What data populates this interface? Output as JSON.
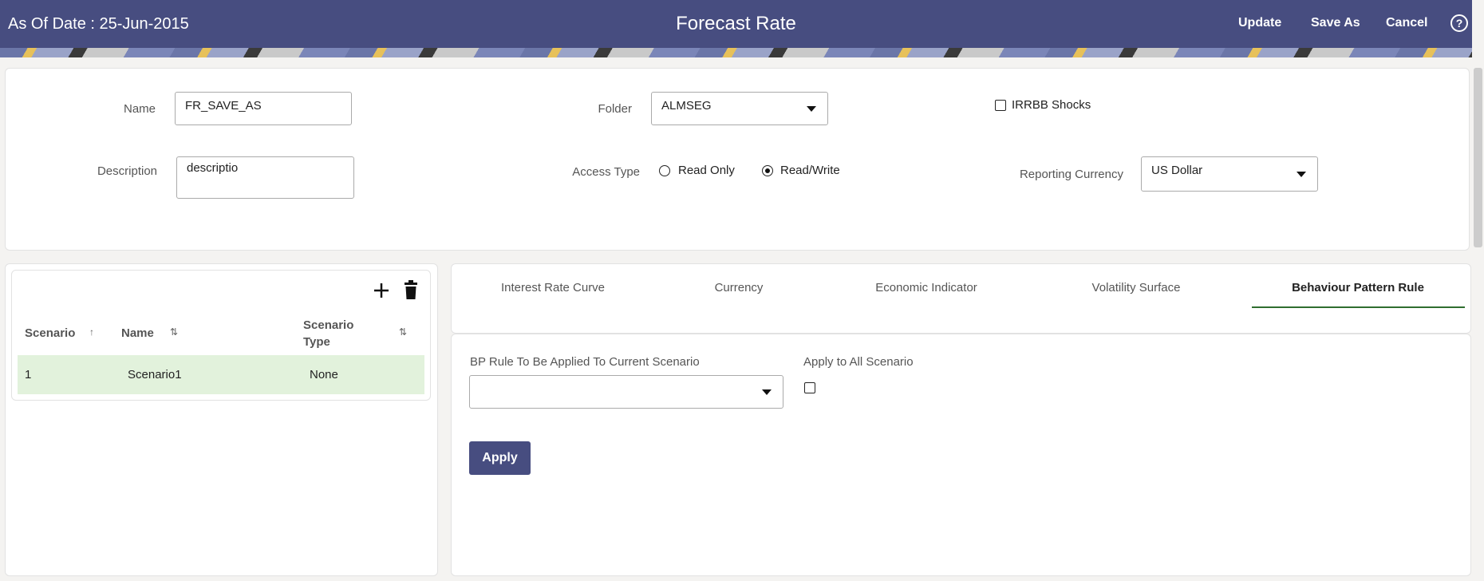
{
  "header": {
    "as_of_date": "As Of Date : 25-Jun-2015",
    "title": "Forecast Rate",
    "update_label": "Update",
    "save_as_label": "Save As",
    "cancel_label": "Cancel",
    "help_icon": "?",
    "color": "#474d80"
  },
  "form": {
    "name_label": "Name",
    "name_value": "FR_SAVE_AS",
    "folder_label": "Folder",
    "folder_value": "ALMSEG",
    "irrbb_label": "IRRBB Shocks",
    "irrbb_checked": false,
    "description_label": "Description",
    "description_value": "descriptio",
    "access_type_label": "Access Type",
    "access_options": [
      "Read Only",
      "Read/Write"
    ],
    "access_selected": "Read/Write",
    "reporting_currency_label": "Reporting Currency",
    "reporting_currency_value": "US Dollar"
  },
  "scenarios": {
    "columns": [
      "Scenario",
      "Name",
      "Scenario Type"
    ],
    "sort_icons": [
      "↑",
      "⇅",
      "⇅"
    ],
    "rows": [
      {
        "scenario": "1",
        "name": "Scenario1",
        "type": "None"
      }
    ],
    "selected_row_color": "#e2f2dc"
  },
  "tabs": {
    "items": [
      "Interest Rate Curve",
      "Currency",
      "Economic Indicator",
      "Volatility Surface",
      "Behaviour Pattern Rule"
    ],
    "active": "Behaviour Pattern Rule",
    "active_color": "#2f6e2f"
  },
  "bp": {
    "rule_label": "BP Rule To Be Applied To Current Scenario",
    "rule_value": "",
    "apply_all_label": "Apply to All Scenario",
    "apply_all_checked": false,
    "apply_label": "Apply"
  }
}
